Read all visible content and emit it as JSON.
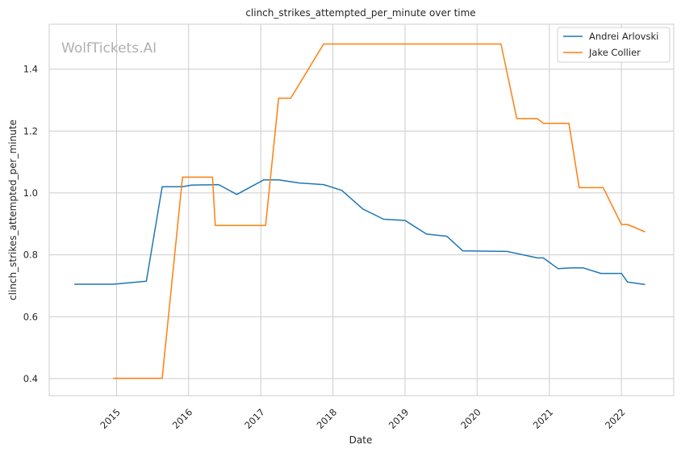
{
  "chart_data": {
    "type": "line",
    "title": "clinch_strikes_attempted_per_minute over time",
    "xlabel": "Date",
    "ylabel": "clinch_strikes_attempted_per_minute",
    "watermark": "WolfTickets.AI",
    "x_ticks": [
      "2015",
      "2016",
      "2017",
      "2018",
      "2019",
      "2020",
      "2021",
      "2022"
    ],
    "y_ticks": [
      "0.4",
      "0.6",
      "0.8",
      "1.0",
      "1.2",
      "1.4"
    ],
    "xlim": [
      "2014-01-25",
      "2022-09-23"
    ],
    "ylim": [
      0.345,
      1.545
    ],
    "grid": true,
    "legend_position": "top-right",
    "series": [
      {
        "name": "Andrei Arlovski",
        "color": "#1f77b4",
        "points": [
          [
            "2014-06-01",
            0.705
          ],
          [
            "2014-12-15",
            0.705
          ],
          [
            "2015-06-01",
            0.715
          ],
          [
            "2015-08-20",
            1.02
          ],
          [
            "2015-12-01",
            1.02
          ],
          [
            "2016-01-15",
            1.025
          ],
          [
            "2016-06-01",
            1.027
          ],
          [
            "2016-09-01",
            0.995
          ],
          [
            "2017-01-15",
            1.042
          ],
          [
            "2017-04-01",
            1.042
          ],
          [
            "2017-07-15",
            1.032
          ],
          [
            "2017-11-15",
            1.027
          ],
          [
            "2018-02-15",
            1.008
          ],
          [
            "2018-06-01",
            0.948
          ],
          [
            "2018-09-15",
            0.915
          ],
          [
            "2019-01-01",
            0.911
          ],
          [
            "2019-04-20",
            0.867
          ],
          [
            "2019-08-01",
            0.86
          ],
          [
            "2019-10-20",
            0.813
          ],
          [
            "2020-02-01",
            0.812
          ],
          [
            "2020-06-01",
            0.811
          ],
          [
            "2020-11-01",
            0.79
          ],
          [
            "2020-12-01",
            0.79
          ],
          [
            "2021-02-15",
            0.755
          ],
          [
            "2021-04-20",
            0.758
          ],
          [
            "2021-06-20",
            0.758
          ],
          [
            "2021-09-20",
            0.74
          ],
          [
            "2022-01-01",
            0.74
          ],
          [
            "2022-02-01",
            0.712
          ],
          [
            "2022-05-01",
            0.704
          ]
        ]
      },
      {
        "name": "Jake Collier",
        "color": "#ff7f0e",
        "points": [
          [
            "2014-12-15",
            0.401
          ],
          [
            "2015-08-20",
            0.401
          ],
          [
            "2015-12-01",
            1.051
          ],
          [
            "2016-05-01",
            1.051
          ],
          [
            "2016-05-15",
            0.895
          ],
          [
            "2017-01-25",
            0.895
          ],
          [
            "2017-04-01",
            1.306
          ],
          [
            "2017-06-01",
            1.306
          ],
          [
            "2017-11-15",
            1.481
          ],
          [
            "2020-05-01",
            1.481
          ],
          [
            "2020-07-20",
            1.24
          ],
          [
            "2020-11-01",
            1.24
          ],
          [
            "2020-12-01",
            1.225
          ],
          [
            "2021-04-10",
            1.225
          ],
          [
            "2021-06-01",
            1.017
          ],
          [
            "2021-10-01",
            1.017
          ],
          [
            "2022-01-01",
            0.898
          ],
          [
            "2022-02-01",
            0.898
          ],
          [
            "2022-05-01",
            0.874
          ]
        ]
      }
    ]
  }
}
